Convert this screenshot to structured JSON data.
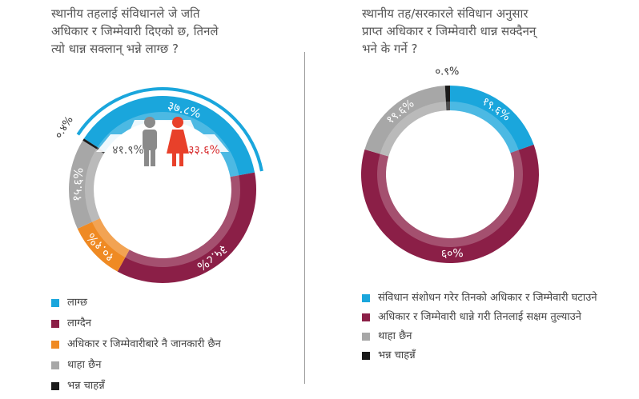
{
  "colors": {
    "yes": "#1aa6dc",
    "no": "#8b1f47",
    "unaware": "#ef8a23",
    "dontknow": "#a7a7a7",
    "refuse": "#1a1a1a",
    "male_icon": "#8a8a8a",
    "female_icon": "#e8402a",
    "female_text": "#d6282a"
  },
  "chart_data": [
    {
      "type": "pie",
      "title": "स्थानीय तहलाई संविधानले जे जति\nअधिकार र जिम्मेवारी दिएको छ, तिनले\nत्यो धान्न सक्लान् भन्ने लाग्छ ?",
      "categories": [
        "लाग्छ",
        "लाग्दैन",
        "अधिकार र जिम्मेवारीबारे नै जानकारी छैन",
        "थाहा छैन",
        "भन्न चाहन्नँ"
      ],
      "values": [
        37.8,
        35.8,
        10.1,
        15.6,
        0.4
      ],
      "labels": [
        "३७.८%",
        "३५.८%",
        "१०.१%",
        "१५.६%",
        "०.४%"
      ],
      "annotations": {
        "male_value": "४१.९%",
        "female_value": "३३.६%"
      }
    },
    {
      "type": "pie",
      "title": "स्थानीय तह/सरकारले संविधान अनुसार\nप्राप्त अधिकार र जिम्मेवारी धान्न सक्दैनन्\nभने के गर्ने ?",
      "categories": [
        "संविधान संशोधन गरेर तिनको अधिकार र जिम्मेवारी घटाउने",
        "अधिकार र जिम्मेवारी धान्ने गरी तिनलाई सक्षम तुल्याउने",
        "थाहा छैन",
        "भन्न चाहन्नँ"
      ],
      "values": [
        19.6,
        60.0,
        19.6,
        0.9
      ],
      "labels": [
        "१९.६%",
        "६०%",
        "१९.६%",
        "०.९%"
      ]
    }
  ],
  "legend1": [
    {
      "label": "लाग्छ",
      "color": "#1aa6dc"
    },
    {
      "label": "लाग्दैन",
      "color": "#8b1f47"
    },
    {
      "label": "अधिकार र जिम्मेवारीबारे नै जानकारी छैन",
      "color": "#ef8a23"
    },
    {
      "label": "थाहा छैन",
      "color": "#a7a7a7"
    },
    {
      "label": "भन्न चाहन्नँ",
      "color": "#1a1a1a"
    }
  ],
  "legend2": [
    {
      "label": "संविधान संशोधन गरेर तिनको अधिकार र जिम्मेवारी घटाउने",
      "color": "#1aa6dc"
    },
    {
      "label": "अधिकार र जिम्मेवारी धान्ने गरी तिनलाई सक्षम तुल्याउने",
      "color": "#8b1f47"
    },
    {
      "label": "थाहा छैन",
      "color": "#a7a7a7"
    },
    {
      "label": "भन्न चाहन्नँ",
      "color": "#1a1a1a"
    }
  ]
}
